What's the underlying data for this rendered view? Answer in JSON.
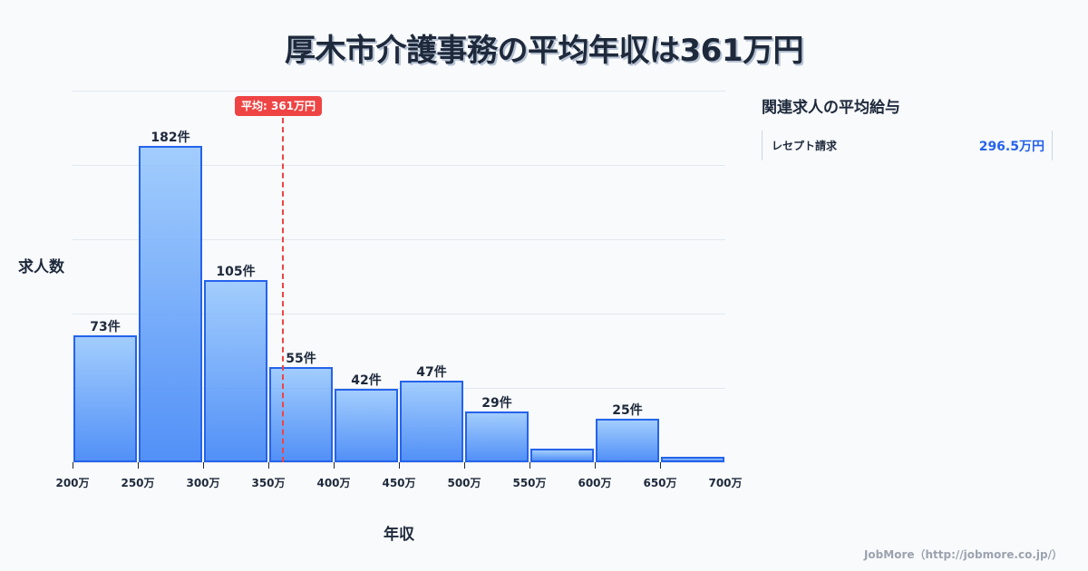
{
  "title": "厚木市介護事務の平均年収は361万円",
  "chart_data": {
    "type": "bar",
    "title": "厚木市介護事務の平均年収は361万円",
    "xlabel": "年収",
    "ylabel": "求人数",
    "categories": [
      "200-250万",
      "250-300万",
      "300-350万",
      "350-400万",
      "400-450万",
      "450-500万",
      "500-550万",
      "550-600万",
      "600-650万",
      "650-700万"
    ],
    "values": [
      73,
      182,
      105,
      55,
      42,
      47,
      29,
      8,
      25,
      3
    ],
    "bar_labels": [
      "73件",
      "182件",
      "105件",
      "55件",
      "42件",
      "47件",
      "29件",
      "",
      "25件",
      ""
    ],
    "x_ticks": [
      "200万",
      "250万",
      "300万",
      "350万",
      "400万",
      "450万",
      "500万",
      "550万",
      "600万",
      "650万",
      "700万"
    ],
    "xlim": [
      200,
      700
    ],
    "ylim": [
      0,
      214
    ],
    "grid": true,
    "average": {
      "value": 361,
      "label": "平均: 361万円",
      "color": "#ef4444"
    },
    "bar_color": "#3b82f6",
    "bar_border_color": "#2563eb"
  },
  "axes": {
    "y_title": "求人数",
    "x_title": "年収"
  },
  "sidebar": {
    "title": "関連求人の平均給与",
    "items": [
      {
        "label": "レセプト請求",
        "value": "296.5万円"
      }
    ]
  },
  "footer": "JobMore（http://jobmore.co.jp/）"
}
